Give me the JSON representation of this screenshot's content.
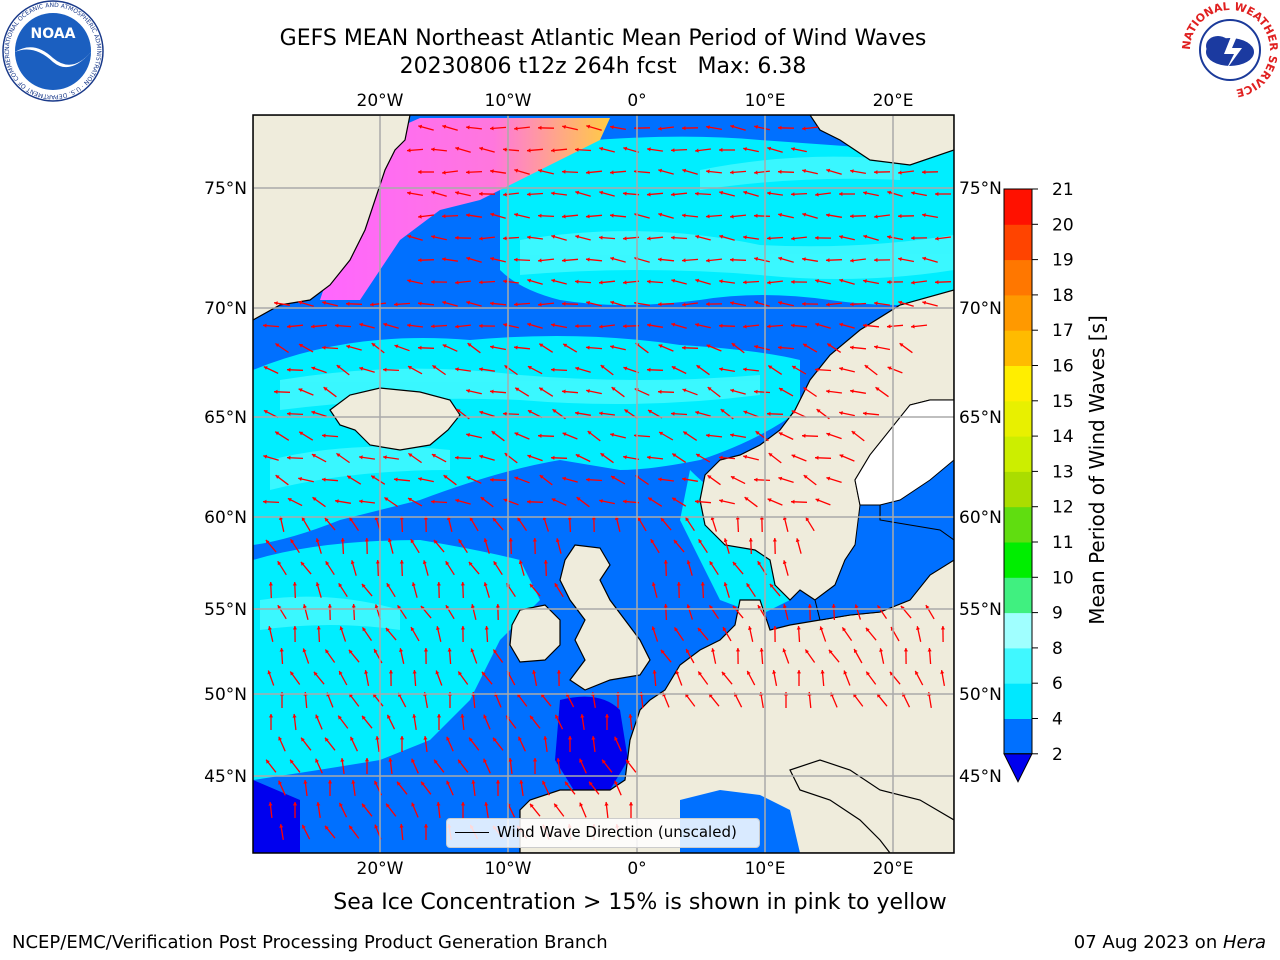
{
  "title": {
    "line1": "GEFS MEAN Northeast Atlantic Mean Period of Wind Waves",
    "line2": "20230806 t12z 264h fcst   Max: 6.38"
  },
  "axes": {
    "lon_ticks": [
      "20°W",
      "10°W",
      "0°",
      "10°E",
      "20°E"
    ],
    "lat_ticks": [
      "75°N",
      "70°N",
      "65°N",
      "60°N",
      "55°N",
      "50°N",
      "45°N"
    ]
  },
  "colorbar": {
    "label": "Mean Period of Wind Waves [s]",
    "ticks": [
      "2",
      "4",
      "6",
      "8",
      "9",
      "10",
      "11",
      "12",
      "13",
      "14",
      "15",
      "16",
      "17",
      "18",
      "19",
      "20",
      "21"
    ],
    "colors": [
      "#0070ff",
      "#00e8ff",
      "#40f8ff",
      "#a0ffff",
      "#40f080",
      "#00ee00",
      "#60dd10",
      "#aadd00",
      "#ccee00",
      "#e8f000",
      "#ffee00",
      "#ffbb00",
      "#ff9900",
      "#ff7700",
      "#ff4400",
      "#ff1100"
    ],
    "under_color": "#0000ee"
  },
  "legend": {
    "label": "Wind Wave Direction (unscaled)"
  },
  "footer": {
    "note": "Sea Ice Concentration > 15% is shown in pink to yellow",
    "credit_left": "NCEP/EMC/Verification Post Processing Product Generation Branch",
    "credit_date": "07 Aug 2023 on ",
    "credit_machine": "Hera"
  },
  "logos": {
    "left": "NOAA",
    "left_ring": "NATIONAL OCEANIC AND ATMOSPHERIC ADMINISTRATION · U.S. DEPARTMENT OF COMMERCE",
    "right_ring": "NATIONAL WEATHER SERVICE"
  },
  "colors": {
    "land": "#efecdc",
    "ocean_base": "#0070ff",
    "ocean_mid": "#00eeff",
    "ocean_light": "#40f8ff",
    "ice_pink": "#ff66ff",
    "ice_yellow": "#ffcc33",
    "arrow": "#ff0000",
    "grid": "#aaaaaa"
  }
}
